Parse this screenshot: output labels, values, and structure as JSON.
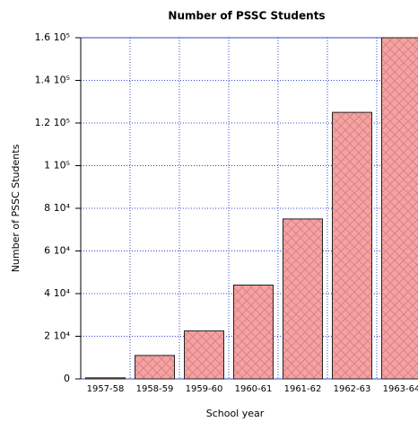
{
  "chart_data": {
    "type": "bar",
    "title": "Number of PSSC Students",
    "x_label": "School year",
    "y_label": "Number of PSSC Students",
    "categories": [
      "1957-58",
      "1958-59",
      "1959-60",
      "1960-61",
      "1961-62",
      "1962-63",
      "1963-64"
    ],
    "values": [
      500,
      11000,
      22500,
      44000,
      75000,
      125000,
      160000
    ],
    "color": "#f2a3a3",
    "ylim": [
      0,
      160000
    ],
    "yticks": [
      0,
      {
        "value": 20000,
        "label": "2 10⁴"
      },
      {
        "value": 40000,
        "label": "4 10⁴"
      },
      {
        "value": 60000,
        "label": "6 10⁴"
      },
      {
        "value": 80000,
        "label": "8 10⁴"
      },
      {
        "value": 100000,
        "label": "1 10⁵"
      },
      {
        "value": 120000,
        "label": "1.2 10⁵"
      },
      {
        "value": 140000,
        "label": "1.4 10⁵"
      },
      {
        "value": 160000,
        "label": "1.6 10⁵"
      }
    ],
    "grid": true
  }
}
